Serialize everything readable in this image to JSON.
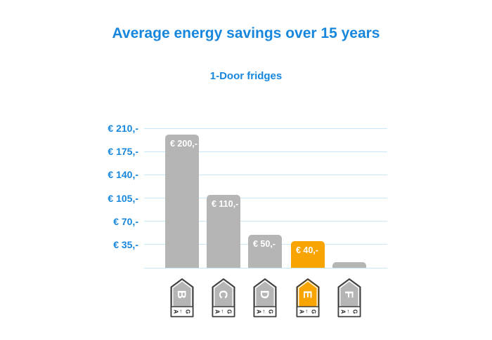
{
  "header": {
    "title": "Average energy savings over 15 years",
    "subtitle": "1-Door fridges"
  },
  "chart_data": {
    "type": "bar",
    "title": "Average energy savings over 15 years",
    "subtitle": "1-Door fridges",
    "xlabel": "",
    "ylabel": "",
    "categories": [
      "B",
      "C",
      "D",
      "E",
      "F"
    ],
    "values": [
      200,
      110,
      50,
      40,
      8
    ],
    "value_labels": [
      "€ 200,-",
      "€ 110,-",
      "€ 50,-",
      "€ 40,-",
      ""
    ],
    "highlight_category": "E",
    "bar_colors": [
      "#b5b5b5",
      "#b5b5b5",
      "#b5b5b5",
      "#f8a503",
      "#b5b5b5"
    ],
    "yticks": [
      {
        "value": 210,
        "label": "€ 210,-"
      },
      {
        "value": 175,
        "label": "€ 175,-"
      },
      {
        "value": 140,
        "label": "€ 140,-"
      },
      {
        "value": 105,
        "label": "€ 105,-"
      },
      {
        "value": 70,
        "label": "€ 70,-"
      },
      {
        "value": 35,
        "label": "€ 35,-"
      },
      {
        "value": 0,
        "label": ""
      }
    ],
    "ylim": [
      0,
      210
    ],
    "grid": true,
    "legend": false,
    "energy_scale_icon": {
      "start": "A",
      "arrow": "←",
      "end": "G"
    }
  },
  "colors": {
    "accent_blue": "#1787de",
    "grid_blue": "#c8e8fa",
    "bar_gray": "#b5b5b5",
    "bar_orange": "#f8a503",
    "bar_label_white": "#ffffff",
    "tag_border": "#3d3d3d",
    "tag_inner_stroke": "#ffffff",
    "tag_letter": "#ffffff",
    "tag_scale_text": "#222222",
    "tag_scale_bg": "#ffffff"
  }
}
